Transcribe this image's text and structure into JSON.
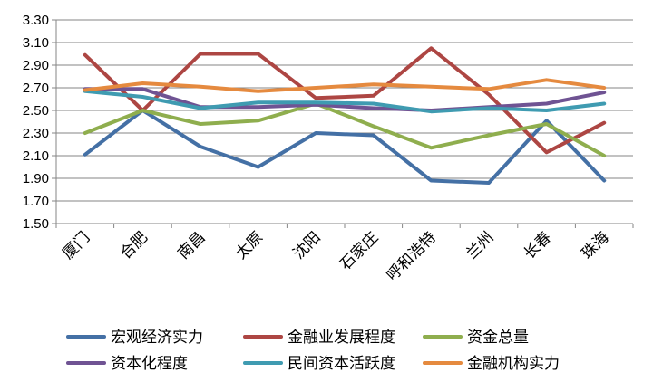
{
  "chart_data": {
    "type": "line",
    "title": "",
    "xlabel": "",
    "ylabel": "",
    "ylim": [
      1.5,
      3.3
    ],
    "y_ticks": [
      "1.50",
      "1.70",
      "1.90",
      "2.10",
      "2.30",
      "2.50",
      "2.70",
      "2.90",
      "3.10",
      "3.30"
    ],
    "categories": [
      "厦门",
      "合肥",
      "南昌",
      "太原",
      "沈阳",
      "石家庄",
      "呼和浩特",
      "兰州",
      "长春",
      "珠海"
    ],
    "grid": true,
    "legend_position": "bottom",
    "series": [
      {
        "name": "宏观经济实力",
        "color": "#4470a5",
        "values": [
          2.11,
          2.5,
          2.18,
          2.0,
          2.3,
          2.28,
          1.88,
          1.86,
          2.41,
          1.88
        ]
      },
      {
        "name": "金融业发展程度",
        "color": "#ad4643",
        "values": [
          2.99,
          2.5,
          3.0,
          3.0,
          2.61,
          2.63,
          3.05,
          2.64,
          2.13,
          2.39
        ]
      },
      {
        "name": "资金总量",
        "color": "#8fae4e",
        "values": [
          2.3,
          2.5,
          2.38,
          2.41,
          2.56,
          2.36,
          2.17,
          2.28,
          2.38,
          2.1
        ]
      },
      {
        "name": "资本化程度",
        "color": "#6f5393",
        "values": [
          2.69,
          2.69,
          2.53,
          2.53,
          2.55,
          2.52,
          2.5,
          2.53,
          2.56,
          2.66
        ]
      },
      {
        "name": "民间资本活跃度",
        "color": "#3f9bb1",
        "values": [
          2.67,
          2.62,
          2.52,
          2.57,
          2.57,
          2.56,
          2.49,
          2.52,
          2.5,
          2.56
        ]
      },
      {
        "name": "金融机构实力",
        "color": "#e58a3f",
        "values": [
          2.68,
          2.74,
          2.71,
          2.67,
          2.7,
          2.73,
          2.71,
          2.69,
          2.77,
          2.7
        ]
      }
    ]
  }
}
